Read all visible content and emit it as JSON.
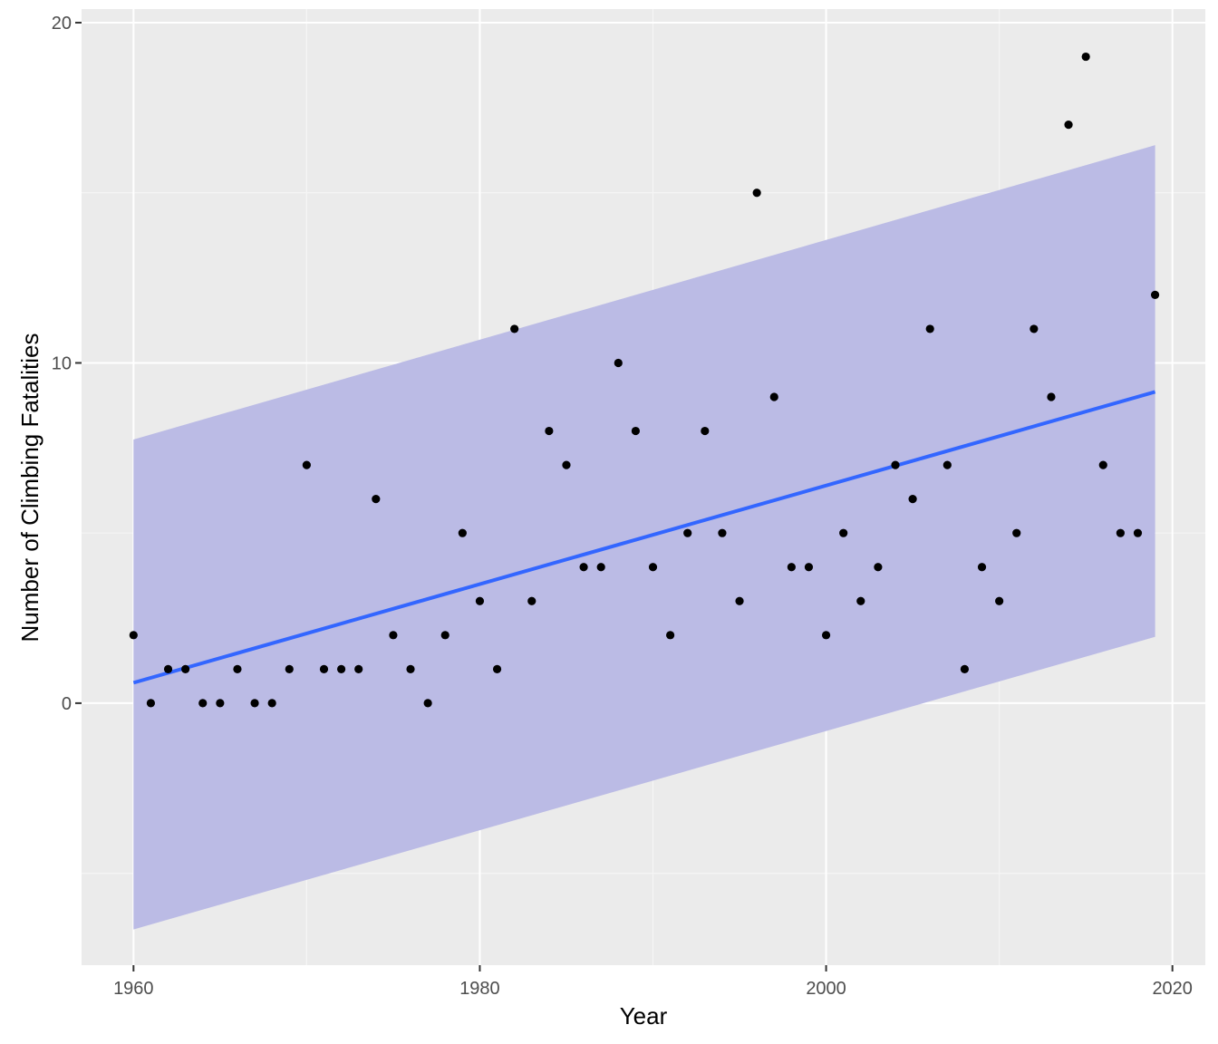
{
  "chart_data": {
    "type": "scatter",
    "xlabel": "Year",
    "ylabel": "Number of Climbing Fatalities",
    "xlim": [
      1957.0,
      2021.9
    ],
    "ylim": [
      -7.7,
      20.4
    ],
    "x_ticks": [
      1960,
      1980,
      2000,
      2020
    ],
    "y_ticks": [
      0,
      10,
      20
    ],
    "x_tick_labels": [
      "1960",
      "1980",
      "2000",
      "2020"
    ],
    "y_tick_labels": [
      "0",
      "10",
      "20"
    ],
    "grid": true,
    "legend": "none",
    "series": [
      {
        "kind": "points",
        "color": "#000000",
        "x": [
          1960,
          1961,
          1962,
          1963,
          1964,
          1965,
          1966,
          1967,
          1968,
          1969,
          1970,
          1971,
          1972,
          1973,
          1974,
          1975,
          1976,
          1977,
          1978,
          1979,
          1980,
          1981,
          1982,
          1983,
          1984,
          1985,
          1986,
          1987,
          1988,
          1989,
          1990,
          1991,
          1992,
          1993,
          1994,
          1995,
          1996,
          1997,
          1998,
          1999,
          2000,
          2001,
          2002,
          2003,
          2004,
          2005,
          2006,
          2007,
          2008,
          2009,
          2010,
          2011,
          2012,
          2013,
          2014,
          2015,
          2016,
          2017,
          2018,
          2019
        ],
        "y": [
          2,
          0,
          1,
          1,
          0,
          0,
          1,
          0,
          0,
          1,
          7,
          1,
          1,
          1,
          6,
          2,
          1,
          0,
          2,
          5,
          3,
          1,
          11,
          3,
          8,
          7,
          4,
          4,
          10,
          8,
          4,
          2,
          5,
          8,
          5,
          3,
          15,
          9,
          4,
          4,
          2,
          5,
          3,
          4,
          7,
          6,
          11,
          7,
          1,
          4,
          3,
          5,
          11,
          9,
          17,
          19,
          7,
          5,
          5,
          12
        ]
      },
      {
        "kind": "regression-line",
        "color": "#3366ff",
        "x": [
          1960,
          2019
        ],
        "y": [
          0.6,
          9.15
        ]
      },
      {
        "kind": "prediction-band",
        "color": "#bbbbe5",
        "x": [
          1960,
          2019
        ],
        "lower": [
          -6.65,
          1.95
        ],
        "upper": [
          7.75,
          16.4
        ]
      }
    ]
  },
  "colors": {
    "panel_background": "#ebebeb",
    "grid_major": "#ffffff",
    "grid_minor": "#f5f5f5",
    "band_fill": "#bbbbe5",
    "line": "#3366ff",
    "points": "#000000"
  }
}
